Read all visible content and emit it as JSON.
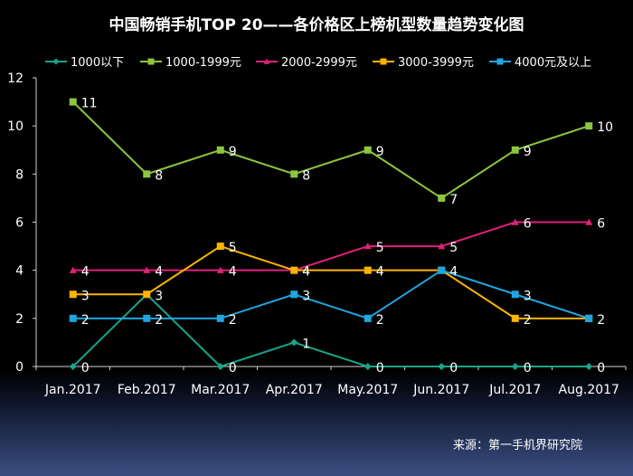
{
  "chart_data": {
    "type": "line",
    "title": "中国畅销手机TOP 20——各价格区上榜机型数量趋势变化图",
    "categories": [
      "Jan.2017",
      "Feb.2017",
      "Mar.2017",
      "Apr.2017",
      "May.2017",
      "Jun.2017",
      "Jul.2017",
      "Aug.2017"
    ],
    "ylim": [
      0,
      12
    ],
    "yticks": [
      0,
      2,
      4,
      6,
      8,
      10,
      12
    ],
    "grid": false,
    "legend_position": "top",
    "series": [
      {
        "name": "1000以下",
        "color": "#18a58a",
        "marker": "diamond",
        "values": [
          0,
          3,
          0,
          1,
          0,
          0,
          0,
          0
        ],
        "labels": [
          "0",
          "",
          "0",
          "1",
          "0",
          "0",
          "0",
          "0"
        ]
      },
      {
        "name": "1000-1999元",
        "color": "#8cc63f",
        "marker": "square",
        "values": [
          11,
          8,
          9,
          8,
          9,
          7,
          9,
          10
        ],
        "labels": [
          "11",
          "8",
          "9",
          "8",
          "9",
          "7",
          "9",
          "10"
        ]
      },
      {
        "name": "2000-2999元",
        "color": "#e0207a",
        "marker": "triangle",
        "values": [
          4,
          4,
          4,
          4,
          5,
          5,
          6,
          6
        ],
        "labels": [
          "4",
          "4",
          "4",
          "4",
          "5",
          "5",
          "6",
          "6"
        ]
      },
      {
        "name": "3000-3999元",
        "color": "#ffb400",
        "marker": "square",
        "values": [
          3,
          3,
          5,
          4,
          4,
          4,
          2,
          2
        ],
        "labels": [
          "3",
          "3",
          "5",
          "4",
          "4",
          "",
          "2",
          "2"
        ]
      },
      {
        "name": "4000元及以上",
        "color": "#1fa6e0",
        "marker": "square",
        "values": [
          2,
          2,
          2,
          3,
          2,
          4,
          3,
          2
        ],
        "labels": [
          "2",
          "2",
          "2",
          "3",
          "2",
          "4",
          "3",
          ""
        ]
      }
    ]
  },
  "source": "来源：第一手机界研究院"
}
